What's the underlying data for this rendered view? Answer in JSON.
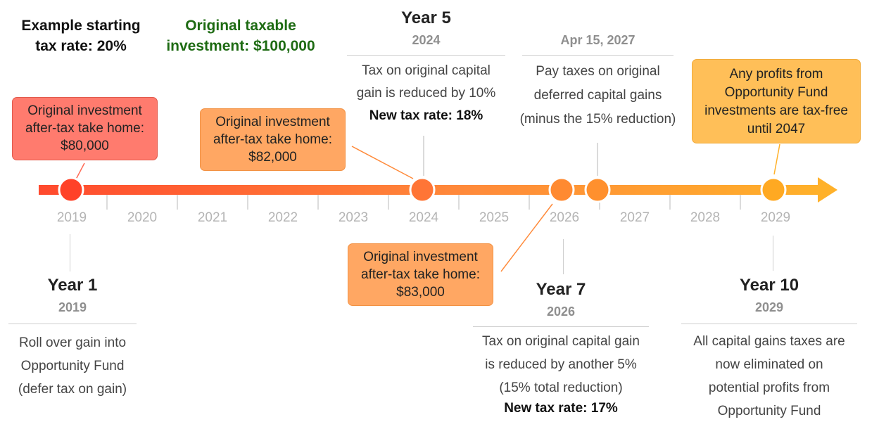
{
  "top_notes": {
    "tax_rate": [
      "Example starting",
      "tax rate: 20%"
    ],
    "investment": [
      "Original taxable",
      "investment: $100,000"
    ]
  },
  "timeline": {
    "years": [
      "2019",
      "2020",
      "2021",
      "2022",
      "2023",
      "2024",
      "2025",
      "2026",
      "2027",
      "2028",
      "2029"
    ],
    "gradient_colors": [
      "#ff4a2e",
      "#ff8a3a",
      "#ffb12a"
    ]
  },
  "milestones": {
    "year1": {
      "title": "Year 1",
      "date": "2019",
      "desc": [
        "Roll over gain into",
        "Opportunity Fund",
        "(defer tax on gain)"
      ]
    },
    "year5": {
      "title": "Year 5",
      "date": "2024",
      "desc": [
        "Tax on original capital",
        "gain is reduced by 10%"
      ],
      "highlight": "New tax rate: 18%"
    },
    "apr2027": {
      "date": "Apr 15, 2027",
      "desc": [
        "Pay taxes on original",
        "deferred capital gains",
        "(minus the 15% reduction)"
      ]
    },
    "year7": {
      "title": "Year 7",
      "date": "2026",
      "desc": [
        "Tax on original capital gain",
        "is reduced by another 5%",
        "(15% total reduction)"
      ],
      "highlight": "New tax rate: 17%"
    },
    "year10": {
      "title": "Year 10",
      "date": "2029",
      "desc": [
        "All capital gains taxes are",
        "now eliminated on",
        "potential profits from",
        "Opportunity Fund"
      ]
    }
  },
  "callouts": {
    "c80": [
      "Original investment",
      "after-tax take home:",
      "$80,000"
    ],
    "c82": [
      "Original investment",
      "after-tax take home:",
      "$82,000"
    ],
    "c83": [
      "Original investment",
      "after-tax take home:",
      "$83,000"
    ],
    "tax_free": [
      "Any profits from",
      "Opportunity Fund",
      "investments are tax-free",
      "until 2047"
    ]
  }
}
